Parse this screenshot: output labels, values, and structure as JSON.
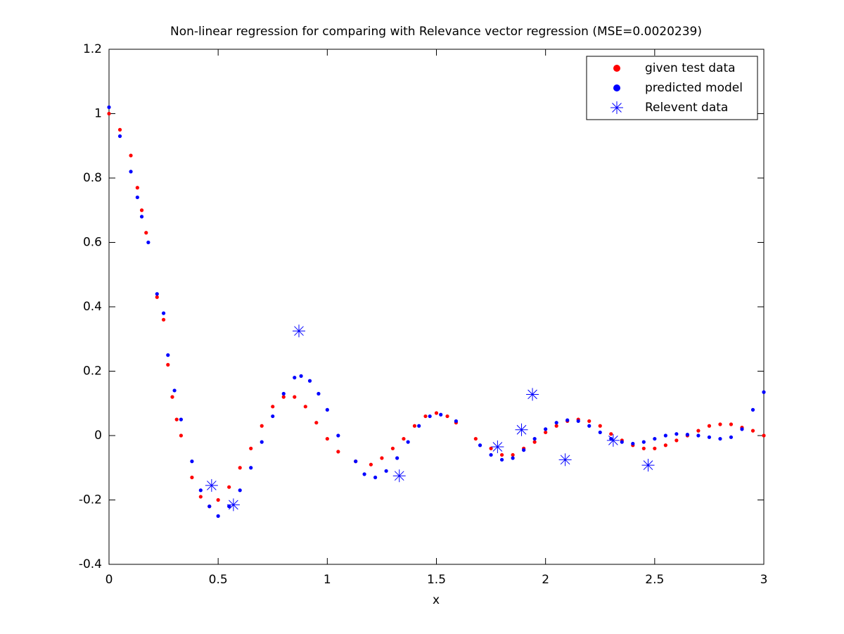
{
  "chart_data": {
    "type": "scatter",
    "title": "Non-linear regression for comparing with Relevance vector regression (MSE=0.0020239)",
    "x_label": "x",
    "xlim": [
      0,
      3
    ],
    "xticks": [
      0,
      0.5,
      1,
      1.5,
      2,
      2.5,
      3
    ],
    "ylim": [
      -0.4,
      1.2
    ],
    "yticks": [
      -0.4,
      -0.2,
      0,
      0.2,
      0.4,
      0.6,
      0.8,
      1,
      1.2
    ],
    "legend": "northeast",
    "series": [
      {
        "name": "given test data",
        "color": "#ff0000",
        "marker": "dot",
        "x": [
          0,
          0.05,
          0.1,
          0.13,
          0.15,
          0.17,
          0.22,
          0.25,
          0.27,
          0.29,
          0.31,
          0.33,
          0.38,
          0.42,
          0.46,
          0.5,
          0.55,
          0.6,
          0.65,
          0.7,
          0.75,
          0.8,
          0.85,
          0.9,
          0.95,
          1,
          1.05,
          1.13,
          1.2,
          1.25,
          1.3,
          1.35,
          1.4,
          1.45,
          1.5,
          1.55,
          1.59,
          1.68,
          1.75,
          1.8,
          1.85,
          1.9,
          1.95,
          2,
          2.05,
          2.1,
          2.15,
          2.2,
          2.25,
          2.3,
          2.35,
          2.4,
          2.45,
          2.5,
          2.55,
          2.6,
          2.65,
          2.7,
          2.75,
          2.8,
          2.85,
          2.9,
          2.95,
          3
        ],
        "values": [
          1.0,
          0.95,
          0.87,
          0.77,
          0.7,
          0.63,
          0.43,
          0.36,
          0.22,
          0.12,
          0.05,
          0.0,
          -0.13,
          -0.19,
          -0.22,
          -0.2,
          -0.16,
          -0.1,
          -0.04,
          0.03,
          0.09,
          0.12,
          0.12,
          0.09,
          0.04,
          -0.01,
          -0.05,
          -0.08,
          -0.09,
          -0.07,
          -0.04,
          -0.01,
          0.03,
          0.06,
          0.07,
          0.06,
          0.04,
          -0.01,
          -0.04,
          -0.06,
          -0.06,
          -0.04,
          -0.02,
          0.01,
          0.03,
          0.045,
          0.05,
          0.045,
          0.03,
          0.005,
          -0.015,
          -0.03,
          -0.04,
          -0.04,
          -0.03,
          -0.015,
          0.0,
          0.015,
          0.03,
          0.035,
          0.035,
          0.025,
          0.015,
          0.0
        ]
      },
      {
        "name": "predicted model",
        "color": "#0000ff",
        "marker": "dot",
        "x": [
          0,
          0.05,
          0.1,
          0.13,
          0.15,
          0.18,
          0.22,
          0.25,
          0.27,
          0.3,
          0.33,
          0.38,
          0.42,
          0.46,
          0.5,
          0.55,
          0.6,
          0.65,
          0.7,
          0.75,
          0.8,
          0.85,
          0.88,
          0.92,
          0.96,
          1,
          1.05,
          1.13,
          1.17,
          1.22,
          1.27,
          1.32,
          1.37,
          1.42,
          1.47,
          1.52,
          1.59,
          1.7,
          1.75,
          1.8,
          1.85,
          1.9,
          1.95,
          2,
          2.05,
          2.1,
          2.15,
          2.2,
          2.25,
          2.3,
          2.35,
          2.4,
          2.45,
          2.5,
          2.55,
          2.6,
          2.65,
          2.7,
          2.75,
          2.8,
          2.85,
          2.9,
          2.95,
          3
        ],
        "values": [
          1.02,
          0.93,
          0.82,
          0.74,
          0.68,
          0.6,
          0.44,
          0.38,
          0.25,
          0.14,
          0.05,
          -0.08,
          -0.17,
          -0.22,
          -0.25,
          -0.22,
          -0.17,
          -0.1,
          -0.02,
          0.06,
          0.13,
          0.18,
          0.185,
          0.17,
          0.13,
          0.08,
          0.0,
          -0.08,
          -0.12,
          -0.13,
          -0.11,
          -0.07,
          -0.02,
          0.03,
          0.06,
          0.065,
          0.045,
          -0.03,
          -0.06,
          -0.075,
          -0.07,
          -0.045,
          -0.01,
          0.02,
          0.04,
          0.048,
          0.045,
          0.03,
          0.01,
          -0.01,
          -0.02,
          -0.025,
          -0.02,
          -0.01,
          0.0,
          0.005,
          0.003,
          0.0,
          -0.005,
          -0.01,
          -0.005,
          0.02,
          0.08,
          0.135
        ]
      },
      {
        "name": "Relevent data",
        "color": "#0000ff",
        "marker": "star",
        "x": [
          0.47,
          0.57,
          0.87,
          1.33,
          1.78,
          1.89,
          1.94,
          2.09,
          2.31,
          2.47
        ],
        "values": [
          -0.155,
          -0.215,
          0.325,
          -0.125,
          -0.035,
          0.018,
          0.128,
          -0.075,
          -0.015,
          -0.092
        ]
      }
    ]
  }
}
